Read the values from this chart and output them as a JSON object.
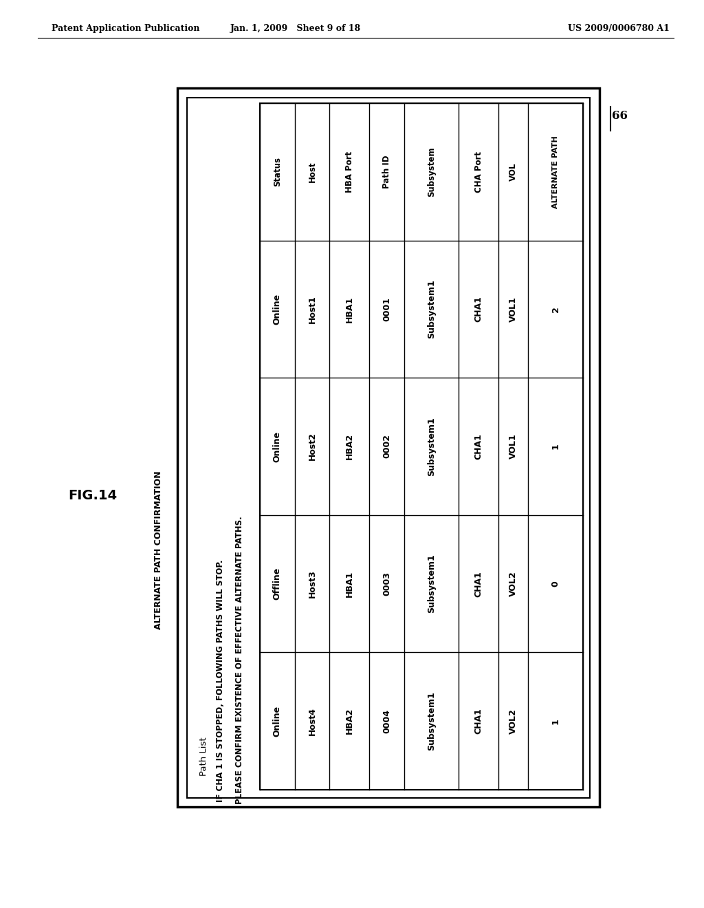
{
  "page_header_left": "Patent Application Publication",
  "page_header_center": "Jan. 1, 2009   Sheet 9 of 18",
  "page_header_right": "US 2009/0006780 A1",
  "fig_label": "FIG.14",
  "box_label": "66",
  "screen_title": "ALTERNATE PATH CONFIRMATION",
  "path_list_label": "Path List",
  "message_line1": "IF CHA 1 IS STOPPED, FOLLOWING PATHS WILL STOP.",
  "message_line2": "PLEASE CONFIRM EXISTENCE OF EFFECTIVE ALTERNATE PATHS.",
  "table_headers": [
    "Status",
    "Host",
    "HBA Port",
    "Path ID",
    "Subsystem",
    "CHA Port",
    "VOL",
    "ALTERNATE PATH"
  ],
  "table_data": [
    [
      "Online",
      "Host1",
      "HBA1",
      "0001",
      "Subsystem1",
      "CHA1",
      "VOL1",
      "2"
    ],
    [
      "Online",
      "Host2",
      "HBA2",
      "0002",
      "Subsystem1",
      "CHA1",
      "VOL1",
      "1"
    ],
    [
      "Offline",
      "Host3",
      "HBA1",
      "0003",
      "Subsystem1",
      "CHA1",
      "VOL2",
      "0"
    ],
    [
      "Online",
      "Host4",
      "HBA2",
      "0004",
      "Subsystem1",
      "CHA1",
      "VOL2",
      "1"
    ]
  ],
  "bg_color": "#ffffff",
  "text_color": "#000000",
  "col_widths_rel": [
    7,
    7,
    8,
    7,
    11,
    8,
    6,
    11
  ]
}
